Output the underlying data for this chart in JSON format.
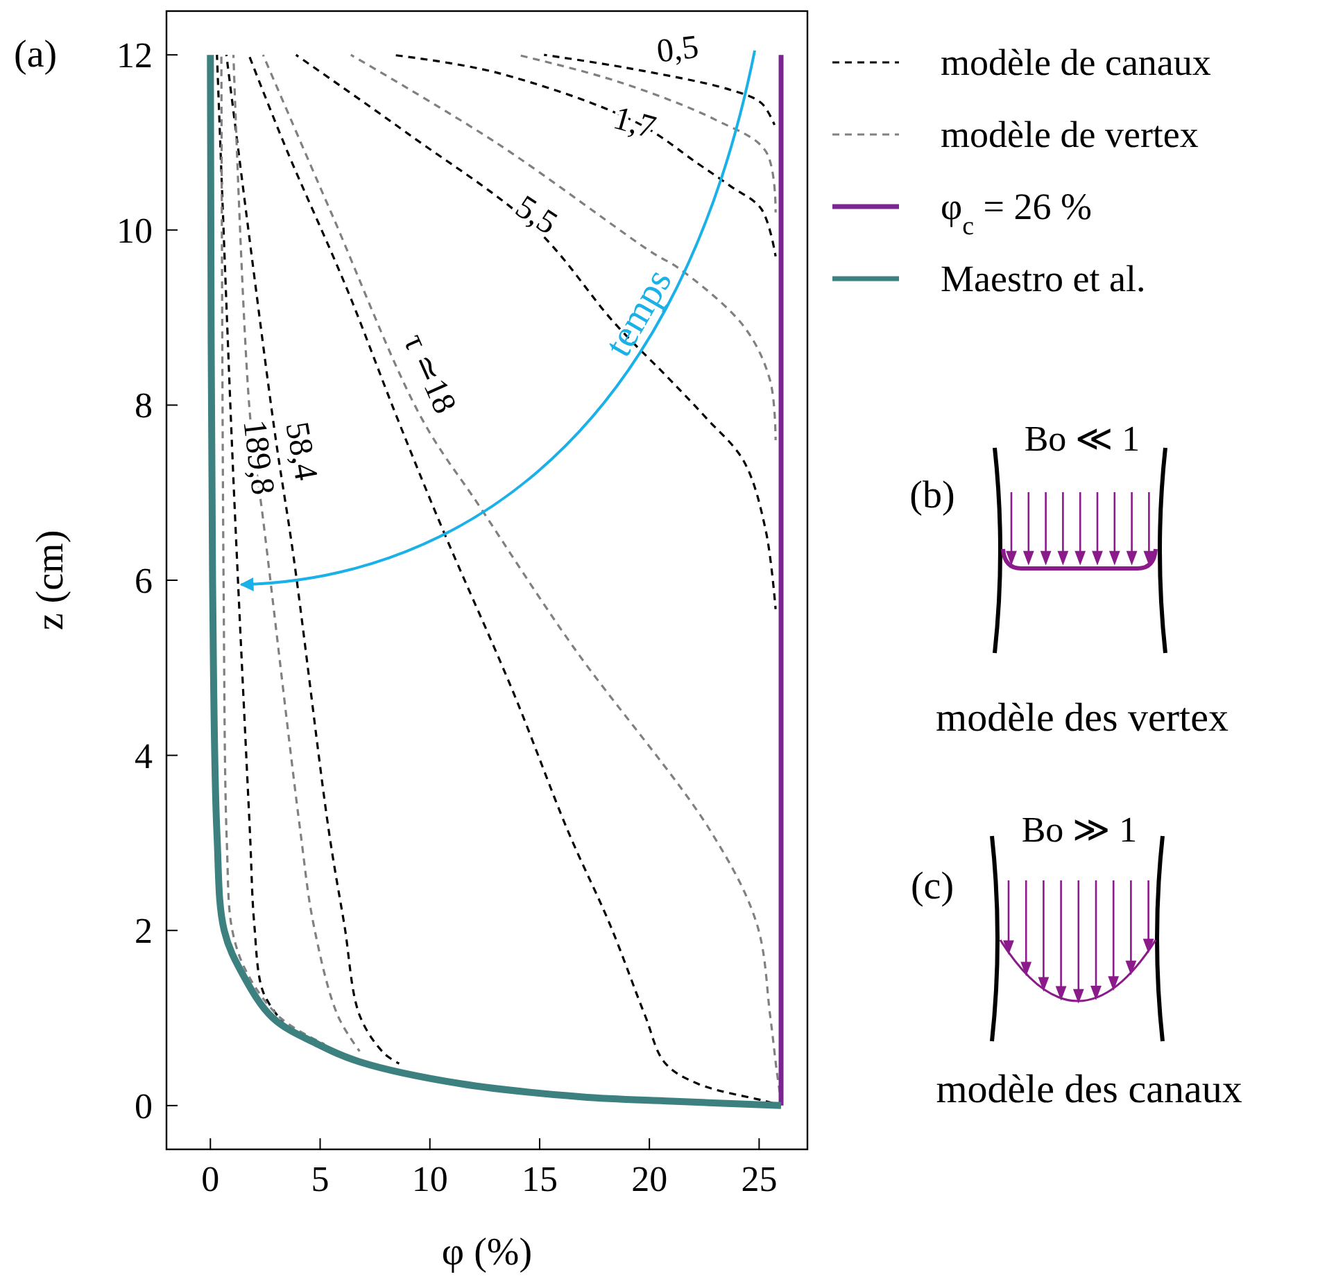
{
  "chart_data": {
    "type": "line",
    "xlabel": "φ (%)",
    "ylabel": "z (cm)",
    "xlim": [
      -2,
      27.2
    ],
    "ylim": [
      -0.5,
      12.5
    ],
    "xticks": [
      0,
      5,
      10,
      15,
      20,
      25
    ],
    "yticks": [
      0,
      2,
      4,
      6,
      8,
      10,
      12
    ],
    "legend": "top right",
    "grid": false,
    "series": [
      {
        "name": "modèle de canaux",
        "color": "#000000",
        "line_style": "dashed",
        "x": [
          15.2,
          19,
          23.7,
          25.1,
          25.7
        ],
        "values": [
          12,
          11.85,
          11.6,
          11.45,
          11.2
        ]
      },
      {
        "color": "#000000",
        "line_style": "dashed",
        "x": [
          8.3,
          13,
          19.4,
          22.2,
          23.7,
          25.1,
          25.75
        ],
        "values": [
          12,
          11.8,
          11.23,
          10.76,
          10.5,
          10.24,
          9.7
        ]
      },
      {
        "color": "#000000",
        "line_style": "dashed",
        "x": [
          3.9,
          9,
          14.8,
          18.4,
          20.9,
          22.6,
          24.3,
          25.3,
          25.75
        ],
        "values": [
          12,
          11.1,
          10.02,
          8.94,
          8.3,
          7.85,
          7.36,
          6.57,
          5.67
        ]
      },
      {
        "color": "#000000",
        "line_style": "dashed",
        "x": [
          1.75,
          3.5,
          6.2,
          8.5,
          10.6,
          13.8,
          16.3,
          18.2,
          19.8,
          20.7,
          22.2,
          25.3,
          26
        ],
        "values": [
          12,
          10.9,
          9.34,
          7.86,
          6.57,
          4.72,
          3.13,
          2.07,
          1.03,
          0.49,
          0.25,
          0.05,
          0
        ]
      },
      {
        "color": "#000000",
        "line_style": "dashed",
        "x": [
          0.73,
          2.9,
          3.8,
          5.4,
          6.1,
          6.8,
          7.9,
          8.6
        ],
        "values": [
          12,
          7.75,
          6.25,
          3.13,
          2.07,
          1.03,
          0.6,
          0.48
        ]
      },
      {
        "color": "#000000",
        "line_style": "dashed",
        "x": [
          0.3,
          0.95,
          1.26,
          1.8,
          2.0,
          2.4,
          3.3
        ],
        "values": [
          12,
          7.75,
          5.98,
          3.13,
          2.07,
          1.3,
          0.95
        ]
      },
      {
        "name": "modèle de vertex",
        "color": "#808080",
        "line_style": "dashed",
        "x": [
          14.0,
          18.5,
          23.0,
          25.3,
          25.75
        ],
        "values": [
          12,
          11.7,
          11.26,
          10.9,
          10.2
        ]
      },
      {
        "color": "#808080",
        "line_style": "dashed",
        "x": [
          6.4,
          13,
          20.2,
          21.3,
          24.3,
          25.5,
          25.75
        ],
        "values": [
          12,
          11.0,
          9.73,
          9.57,
          8.9,
          8.28,
          7.6
        ]
      },
      {
        "color": "#808080",
        "line_style": "dashed",
        "x": [
          2.4,
          5.5,
          9.6,
          12.3,
          16.5,
          22.8,
          24.9,
          25.5,
          25.8,
          26
        ],
        "values": [
          12,
          10.2,
          7.86,
          6.83,
          5.25,
          3.13,
          2.07,
          1.03,
          0.4,
          0.05
        ]
      },
      {
        "color": "#808080",
        "line_style": "dashed",
        "x": [
          1.05,
          1.8,
          2.4,
          4.1,
          4.7,
          5.8,
          6.8
        ],
        "values": [
          12,
          7.9,
          6.7,
          3.13,
          2.07,
          1.03,
          0.62
        ]
      },
      {
        "color": "#808080",
        "line_style": "dashed",
        "x": [
          0.5,
          0.6,
          0.75,
          1.0,
          1.7,
          3.2,
          5.2
        ],
        "values": [
          12,
          6,
          3,
          2,
          1.5,
          1.0,
          0.7
        ]
      },
      {
        "name": "φ$_{c}$ = 26 %",
        "color": "#7b2590",
        "line_style": "solid",
        "x": [
          26,
          26
        ],
        "values": [
          0,
          12
        ]
      },
      {
        "name": "Maestro et al.",
        "color": "#3d8080",
        "line_style": "solid",
        "x": [
          0,
          0.1,
          0.3,
          0.63,
          1.47,
          2.85,
          4.9,
          6.8,
          11.4,
          16.9,
          21,
          26
        ],
        "values": [
          12,
          6,
          3.1,
          2,
          1.5,
          1,
          0.7,
          0.5,
          0.25,
          0.1,
          0.05,
          0
        ]
      }
    ],
    "annotations": [
      "(a)",
      "0,5",
      "1,7",
      "5,5",
      "τ ≃18",
      "58,4",
      "189,8",
      "temps",
      "(b)",
      "Bo ≪ 1",
      "modèle des vertex",
      "(c)",
      "Bo ≫ 1",
      "modèle des canaux"
    ]
  }
}
